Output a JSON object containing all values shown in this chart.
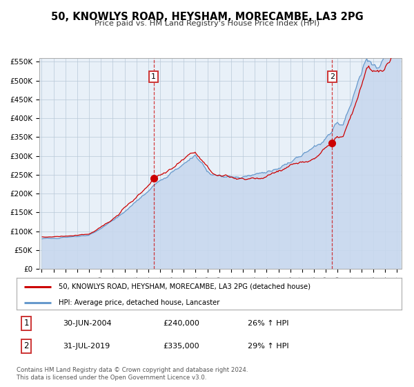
{
  "title": "50, KNOWLYS ROAD, HEYSHAM, MORECAMBE, LA3 2PG",
  "subtitle": "Price paid vs. HM Land Registry's House Price Index (HPI)",
  "red_label": "50, KNOWLYS ROAD, HEYSHAM, MORECAMBE, LA3 2PG (detached house)",
  "blue_label": "HPI: Average price, detached house, Lancaster",
  "sale1_date": "30-JUN-2004",
  "sale1_price": 240000,
  "sale1_pct": "26%",
  "sale2_date": "31-JUL-2019",
  "sale2_price": 335000,
  "sale2_pct": "29%",
  "footer1": "Contains HM Land Registry data © Crown copyright and database right 2024.",
  "footer2": "This data is licensed under the Open Government Licence v3.0.",
  "ylim": [
    0,
    560000
  ],
  "yticks": [
    0,
    50000,
    100000,
    150000,
    200000,
    250000,
    300000,
    350000,
    400000,
    450000,
    500000,
    550000
  ],
  "ytick_labels": [
    "£0",
    "£50K",
    "£100K",
    "£150K",
    "£200K",
    "£250K",
    "£300K",
    "£350K",
    "£400K",
    "£450K",
    "£500K",
    "£550K"
  ],
  "red_color": "#cc0000",
  "blue_color": "#6699cc",
  "blue_fill_color": "#c8d8ee",
  "bg_color": "#e8f0f8",
  "grid_color": "#b8c8d8",
  "annotation_box_color": "#cc3333",
  "sale1_x_year": 2004.5,
  "sale2_x_year": 2019.58,
  "xmin": 1994.8,
  "xmax": 2025.4
}
